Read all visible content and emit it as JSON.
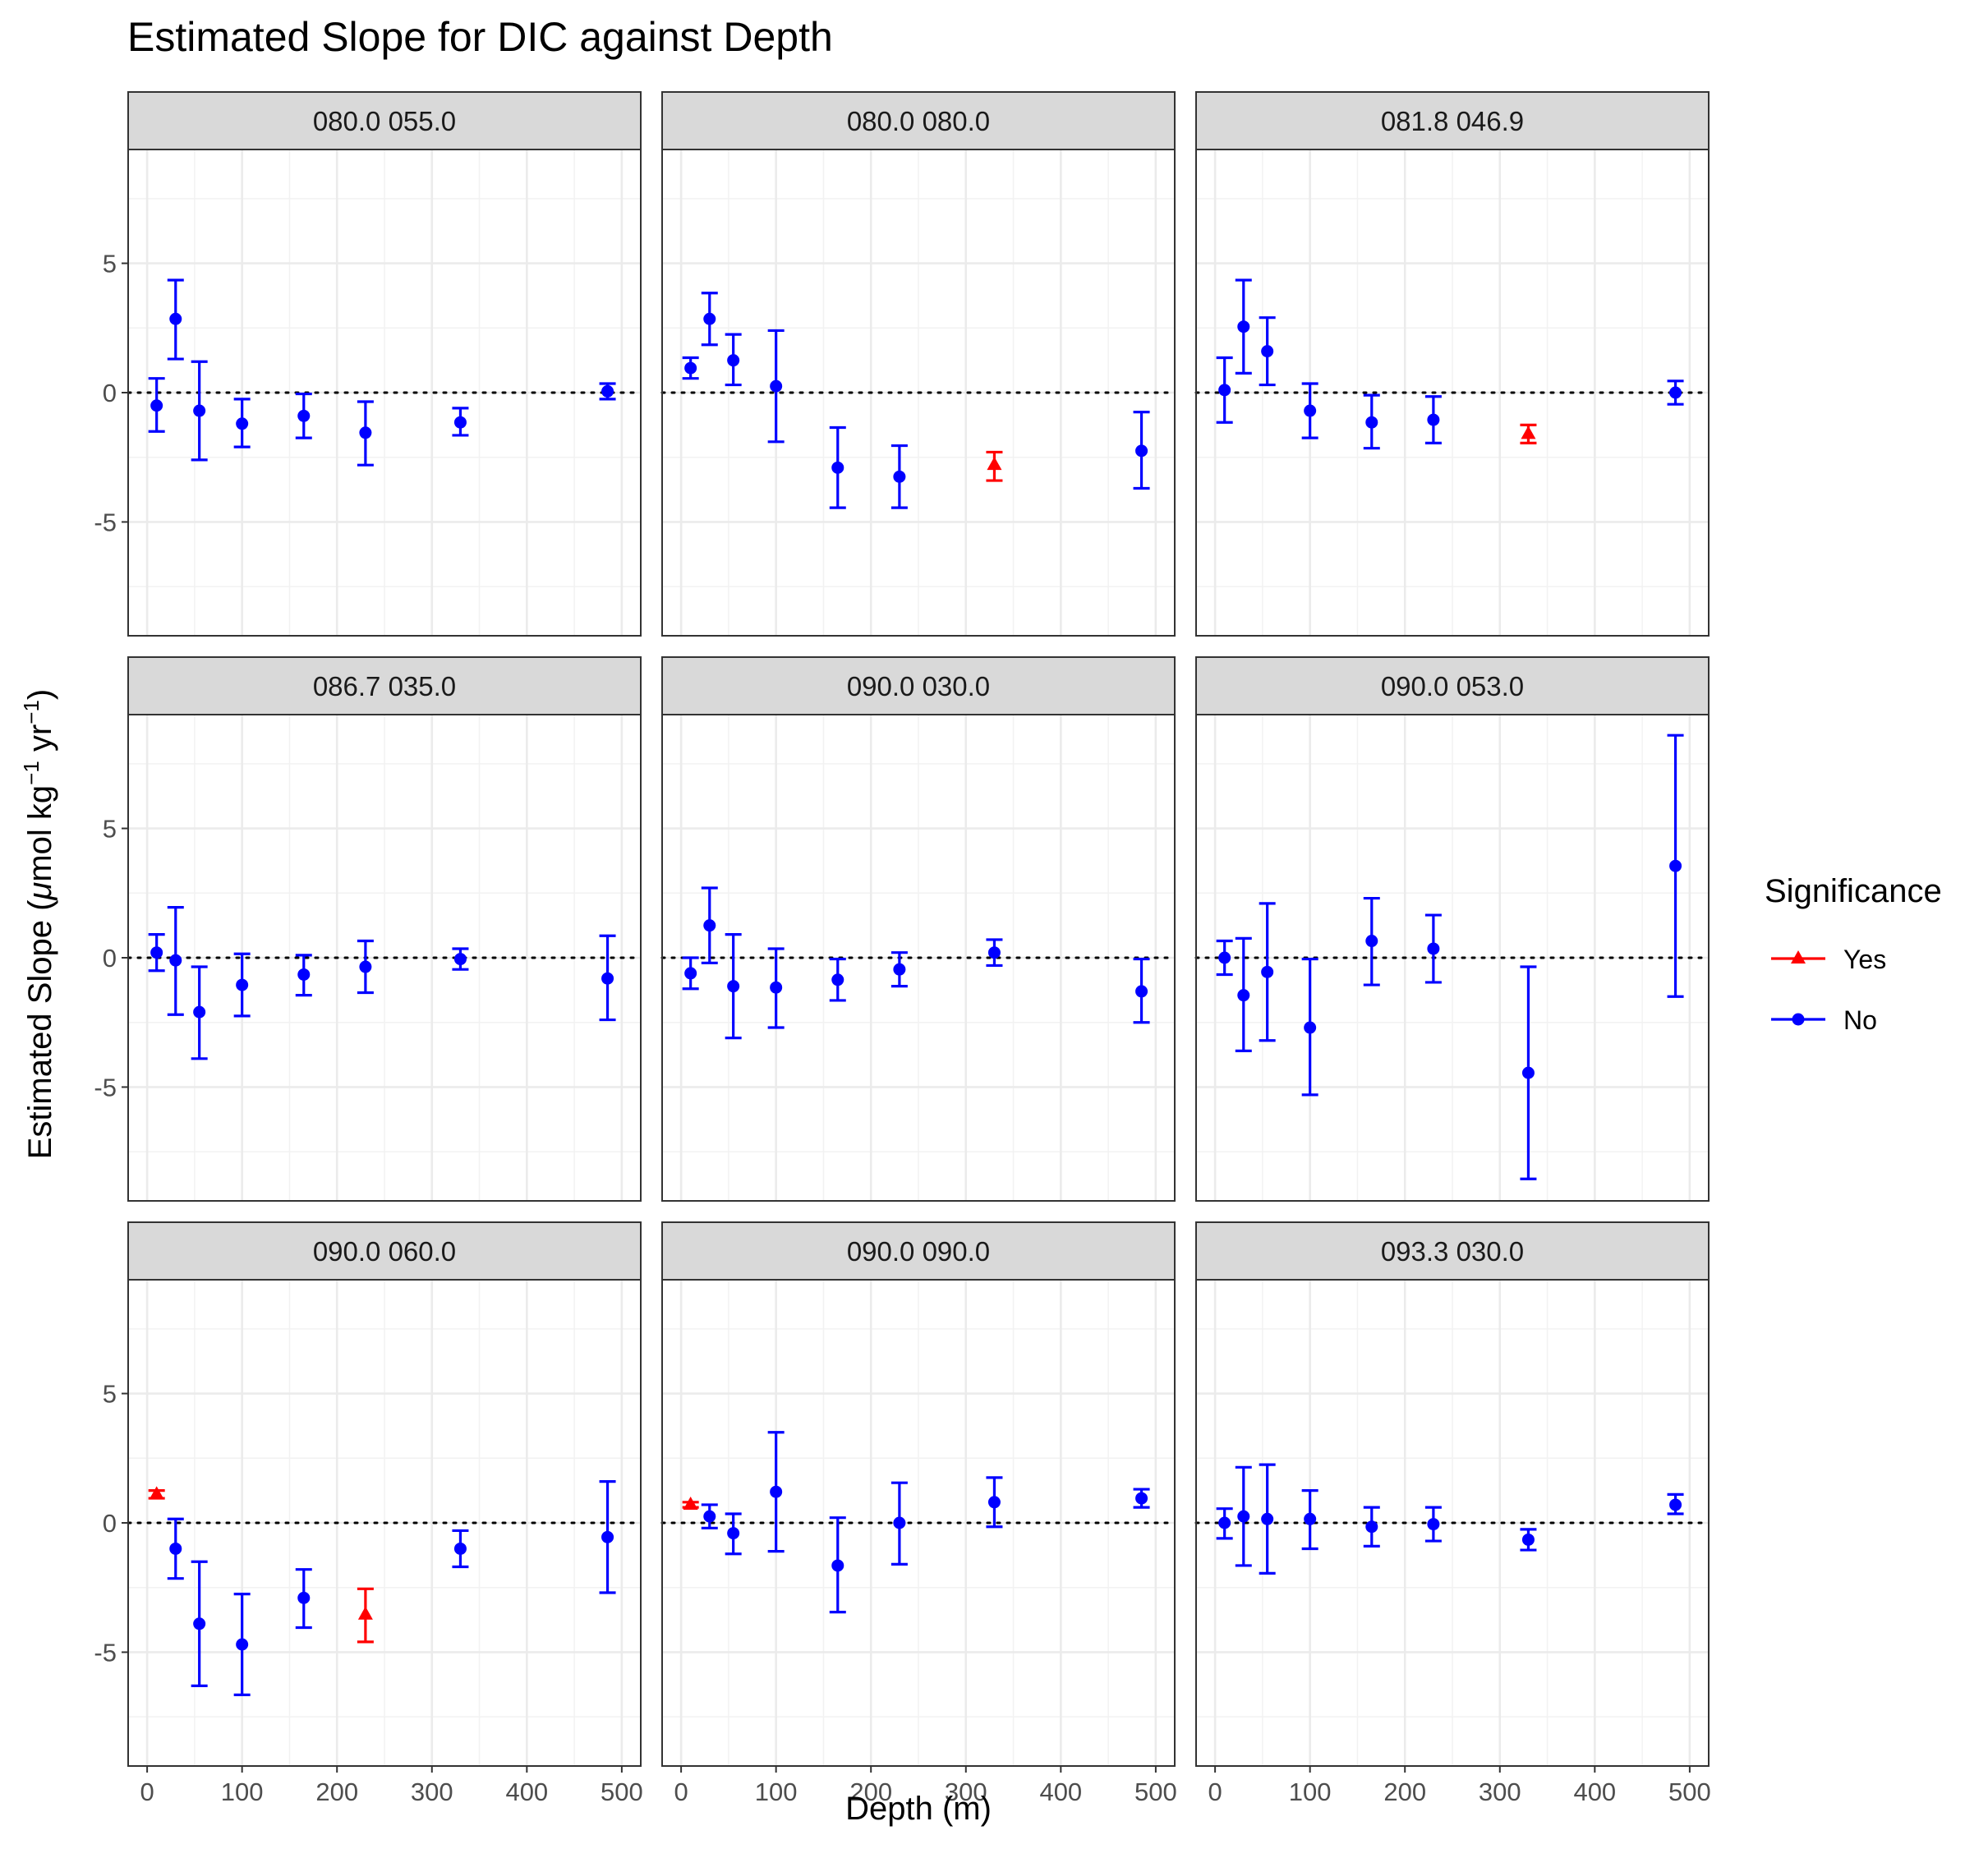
{
  "chart_data": {
    "type": "scatter",
    "title": "Estimated Slope for DIC against Depth",
    "xlabel": "Depth (m)",
    "ylabel_parts": [
      "Estimated Slope (",
      "μ",
      "mol kg",
      "−1",
      " yr",
      "−1",
      ")"
    ],
    "xlim": [
      -20,
      520
    ],
    "ylim": [
      -9.4,
      9.4
    ],
    "x_ticks": [
      0,
      100,
      200,
      300,
      400,
      500
    ],
    "y_ticks": [
      5,
      0,
      -5
    ],
    "y_tick_labels": [
      "5",
      "0",
      "-5"
    ],
    "layout": "facet 3x3, shared axes",
    "grid": true,
    "legend": {
      "title": "Significance",
      "position": "right",
      "entries": [
        {
          "label": "Yes",
          "color": "#ff0000",
          "shape": "triangle"
        },
        {
          "label": "No",
          "color": "#0000ff",
          "shape": "circle"
        }
      ]
    },
    "colors": {
      "Yes": "#ff0000",
      "No": "#0000ff"
    },
    "panels": [
      {
        "label": "080.0 055.0",
        "points": [
          {
            "x": 10,
            "y": -0.5,
            "lo": -1.5,
            "hi": 0.55,
            "sig": "No"
          },
          {
            "x": 30,
            "y": 2.85,
            "lo": 1.3,
            "hi": 4.35,
            "sig": "No"
          },
          {
            "x": 55,
            "y": -0.7,
            "lo": -2.6,
            "hi": 1.2,
            "sig": "No"
          },
          {
            "x": 100,
            "y": -1.2,
            "lo": -2.1,
            "hi": -0.25,
            "sig": "No"
          },
          {
            "x": 165,
            "y": -0.9,
            "lo": -1.75,
            "hi": -0.05,
            "sig": "No"
          },
          {
            "x": 230,
            "y": -1.55,
            "lo": -2.8,
            "hi": -0.35,
            "sig": "No"
          },
          {
            "x": 330,
            "y": -1.15,
            "lo": -1.65,
            "hi": -0.6,
            "sig": "No"
          },
          {
            "x": 485,
            "y": 0.05,
            "lo": -0.25,
            "hi": 0.35,
            "sig": "No"
          }
        ]
      },
      {
        "label": "080.0 080.0",
        "points": [
          {
            "x": 10,
            "y": 0.95,
            "lo": 0.55,
            "hi": 1.35,
            "sig": "No"
          },
          {
            "x": 30,
            "y": 2.85,
            "lo": 1.85,
            "hi": 3.85,
            "sig": "No"
          },
          {
            "x": 55,
            "y": 1.25,
            "lo": 0.3,
            "hi": 2.25,
            "sig": "No"
          },
          {
            "x": 100,
            "y": 0.25,
            "lo": -1.9,
            "hi": 2.4,
            "sig": "No"
          },
          {
            "x": 165,
            "y": -2.9,
            "lo": -4.45,
            "hi": -1.35,
            "sig": "No"
          },
          {
            "x": 230,
            "y": -3.25,
            "lo": -4.45,
            "hi": -2.05,
            "sig": "No"
          },
          {
            "x": 330,
            "y": -2.8,
            "lo": -3.4,
            "hi": -2.3,
            "sig": "Yes"
          },
          {
            "x": 485,
            "y": -2.25,
            "lo": -3.7,
            "hi": -0.75,
            "sig": "No"
          }
        ]
      },
      {
        "label": "081.8 046.9",
        "points": [
          {
            "x": 10,
            "y": 0.1,
            "lo": -1.15,
            "hi": 1.35,
            "sig": "No"
          },
          {
            "x": 30,
            "y": 2.55,
            "lo": 0.75,
            "hi": 4.35,
            "sig": "No"
          },
          {
            "x": 55,
            "y": 1.6,
            "lo": 0.3,
            "hi": 2.9,
            "sig": "No"
          },
          {
            "x": 100,
            "y": -0.7,
            "lo": -1.75,
            "hi": 0.35,
            "sig": "No"
          },
          {
            "x": 165,
            "y": -1.15,
            "lo": -2.15,
            "hi": -0.1,
            "sig": "No"
          },
          {
            "x": 230,
            "y": -1.05,
            "lo": -1.95,
            "hi": -0.15,
            "sig": "No"
          },
          {
            "x": 330,
            "y": -1.6,
            "lo": -1.95,
            "hi": -1.25,
            "sig": "Yes"
          },
          {
            "x": 485,
            "y": 0.0,
            "lo": -0.45,
            "hi": 0.45,
            "sig": "No"
          }
        ]
      },
      {
        "label": "086.7 035.0",
        "points": [
          {
            "x": 10,
            "y": 0.2,
            "lo": -0.5,
            "hi": 0.9,
            "sig": "No"
          },
          {
            "x": 30,
            "y": -0.1,
            "lo": -2.2,
            "hi": 1.95,
            "sig": "No"
          },
          {
            "x": 55,
            "y": -2.1,
            "lo": -3.9,
            "hi": -0.35,
            "sig": "No"
          },
          {
            "x": 100,
            "y": -1.05,
            "lo": -2.25,
            "hi": 0.15,
            "sig": "No"
          },
          {
            "x": 165,
            "y": -0.65,
            "lo": -1.45,
            "hi": 0.1,
            "sig": "No"
          },
          {
            "x": 230,
            "y": -0.35,
            "lo": -1.35,
            "hi": 0.65,
            "sig": "No"
          },
          {
            "x": 330,
            "y": -0.05,
            "lo": -0.45,
            "hi": 0.35,
            "sig": "No"
          },
          {
            "x": 485,
            "y": -0.8,
            "lo": -2.4,
            "hi": 0.85,
            "sig": "No"
          }
        ]
      },
      {
        "label": "090.0 030.0",
        "points": [
          {
            "x": 10,
            "y": -0.6,
            "lo": -1.2,
            "hi": 0.0,
            "sig": "No"
          },
          {
            "x": 30,
            "y": 1.25,
            "lo": -0.2,
            "hi": 2.7,
            "sig": "No"
          },
          {
            "x": 55,
            "y": -1.1,
            "lo": -3.1,
            "hi": 0.9,
            "sig": "No"
          },
          {
            "x": 100,
            "y": -1.15,
            "lo": -2.7,
            "hi": 0.35,
            "sig": "No"
          },
          {
            "x": 165,
            "y": -0.85,
            "lo": -1.65,
            "hi": -0.05,
            "sig": "No"
          },
          {
            "x": 230,
            "y": -0.45,
            "lo": -1.1,
            "hi": 0.2,
            "sig": "No"
          },
          {
            "x": 330,
            "y": 0.2,
            "lo": -0.3,
            "hi": 0.7,
            "sig": "No"
          },
          {
            "x": 485,
            "y": -1.3,
            "lo": -2.5,
            "hi": -0.05,
            "sig": "No"
          }
        ]
      },
      {
        "label": "090.0 053.0",
        "points": [
          {
            "x": 10,
            "y": 0.0,
            "lo": -0.65,
            "hi": 0.65,
            "sig": "No"
          },
          {
            "x": 30,
            "y": -1.45,
            "lo": -3.6,
            "hi": 0.75,
            "sig": "No"
          },
          {
            "x": 55,
            "y": -0.55,
            "lo": -3.2,
            "hi": 2.1,
            "sig": "No"
          },
          {
            "x": 100,
            "y": -2.7,
            "lo": -5.3,
            "hi": -0.05,
            "sig": "No"
          },
          {
            "x": 165,
            "y": 0.65,
            "lo": -1.05,
            "hi": 2.3,
            "sig": "No"
          },
          {
            "x": 230,
            "y": 0.35,
            "lo": -0.95,
            "hi": 1.65,
            "sig": "No"
          },
          {
            "x": 330,
            "y": -4.45,
            "lo": -8.55,
            "hi": -0.35,
            "sig": "No"
          },
          {
            "x": 485,
            "y": 3.55,
            "lo": -1.5,
            "hi": 8.6,
            "sig": "No"
          }
        ]
      },
      {
        "label": "090.0 060.0",
        "points": [
          {
            "x": 10,
            "y": 1.1,
            "lo": 0.95,
            "hi": 1.25,
            "sig": "Yes"
          },
          {
            "x": 30,
            "y": -1.0,
            "lo": -2.15,
            "hi": 0.15,
            "sig": "No"
          },
          {
            "x": 55,
            "y": -3.9,
            "lo": -6.3,
            "hi": -1.5,
            "sig": "No"
          },
          {
            "x": 100,
            "y": -4.7,
            "lo": -6.65,
            "hi": -2.75,
            "sig": "No"
          },
          {
            "x": 165,
            "y": -2.9,
            "lo": -4.05,
            "hi": -1.8,
            "sig": "No"
          },
          {
            "x": 230,
            "y": -3.55,
            "lo": -4.6,
            "hi": -2.55,
            "sig": "Yes"
          },
          {
            "x": 330,
            "y": -1.0,
            "lo": -1.7,
            "hi": -0.3,
            "sig": "No"
          },
          {
            "x": 485,
            "y": -0.55,
            "lo": -2.7,
            "hi": 1.6,
            "sig": "No"
          }
        ]
      },
      {
        "label": "090.0 090.0",
        "points": [
          {
            "x": 10,
            "y": 0.7,
            "lo": 0.6,
            "hi": 0.8,
            "sig": "Yes"
          },
          {
            "x": 30,
            "y": 0.25,
            "lo": -0.2,
            "hi": 0.7,
            "sig": "No"
          },
          {
            "x": 55,
            "y": -0.4,
            "lo": -1.2,
            "hi": 0.35,
            "sig": "No"
          },
          {
            "x": 100,
            "y": 1.2,
            "lo": -1.1,
            "hi": 3.5,
            "sig": "No"
          },
          {
            "x": 165,
            "y": -1.65,
            "lo": -3.45,
            "hi": 0.2,
            "sig": "No"
          },
          {
            "x": 230,
            "y": 0.0,
            "lo": -1.6,
            "hi": 1.55,
            "sig": "No"
          },
          {
            "x": 330,
            "y": 0.8,
            "lo": -0.15,
            "hi": 1.75,
            "sig": "No"
          },
          {
            "x": 485,
            "y": 0.95,
            "lo": 0.6,
            "hi": 1.3,
            "sig": "No"
          }
        ]
      },
      {
        "label": "093.3 030.0",
        "points": [
          {
            "x": 10,
            "y": 0.0,
            "lo": -0.6,
            "hi": 0.55,
            "sig": "No"
          },
          {
            "x": 30,
            "y": 0.25,
            "lo": -1.65,
            "hi": 2.15,
            "sig": "No"
          },
          {
            "x": 55,
            "y": 0.15,
            "lo": -1.95,
            "hi": 2.25,
            "sig": "No"
          },
          {
            "x": 100,
            "y": 0.15,
            "lo": -1.0,
            "hi": 1.25,
            "sig": "No"
          },
          {
            "x": 165,
            "y": -0.15,
            "lo": -0.9,
            "hi": 0.6,
            "sig": "No"
          },
          {
            "x": 230,
            "y": -0.05,
            "lo": -0.7,
            "hi": 0.6,
            "sig": "No"
          },
          {
            "x": 330,
            "y": -0.65,
            "lo": -1.05,
            "hi": -0.25,
            "sig": "No"
          },
          {
            "x": 485,
            "y": 0.7,
            "lo": 0.35,
            "hi": 1.1,
            "sig": "No"
          }
        ]
      }
    ]
  }
}
